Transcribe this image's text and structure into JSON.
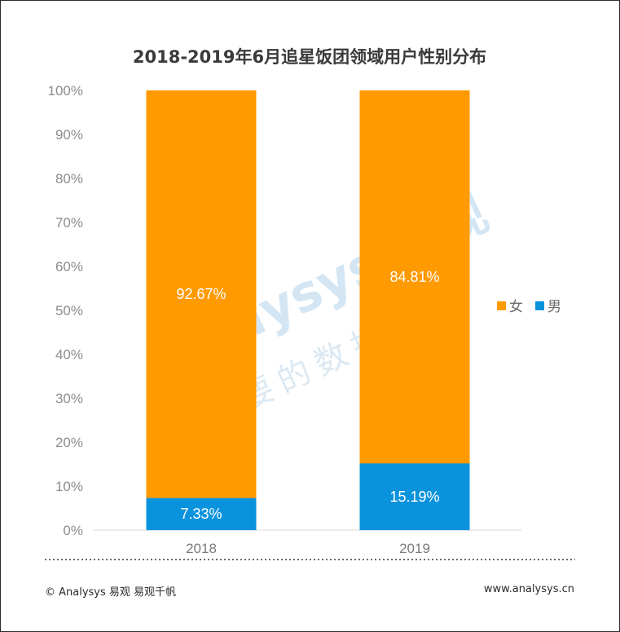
{
  "chart_data": {
    "type": "bar",
    "stacked": true,
    "title": "2018-2019年6月追星饭团领域用户性别分布",
    "categories": [
      "2018",
      "2019"
    ],
    "series": [
      {
        "name": "男",
        "values": [
          7.33,
          15.19
        ],
        "labels": [
          "7.33%",
          "15.19%"
        ],
        "color": "#0a93dd"
      },
      {
        "name": "女",
        "values": [
          92.67,
          84.81
        ],
        "labels": [
          "92.67%",
          "84.81%"
        ],
        "color": "#ff9a00"
      }
    ],
    "yticks": [
      "0%",
      "10%",
      "20%",
      "30%",
      "40%",
      "50%",
      "60%",
      "70%",
      "80%",
      "90%",
      "100%"
    ],
    "ylim": [
      0,
      100
    ],
    "legend": {
      "position": "right",
      "order": [
        "女",
        "男"
      ]
    }
  },
  "watermark": {
    "brand": "Analysys 易观",
    "tagline": "你要的数据分析"
  },
  "footer": {
    "left": "© Analysys 易观 易观千帆",
    "right": "www.analysys.cn"
  }
}
